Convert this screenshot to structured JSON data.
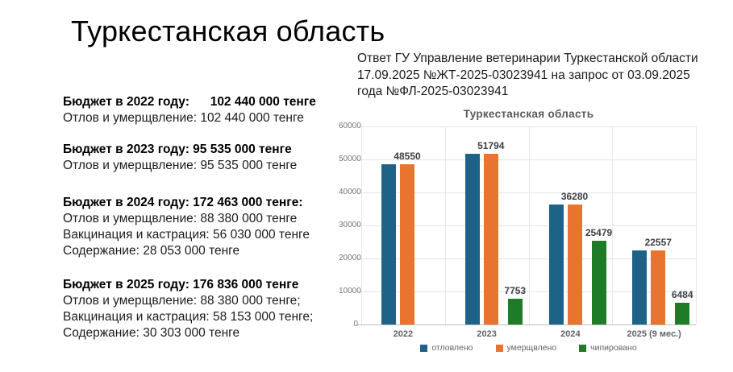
{
  "slide": {
    "title": "Туркестанская область"
  },
  "budget_blocks": [
    {
      "header": "Бюджет в 2022 году:      102 440 000 тенге",
      "lines": [
        "Отлов и умерщвление: 102 440 000 тенге"
      ],
      "gap": "gap-sm"
    },
    {
      "header": "Бюджет в 2023 году: 95 535 000 тенге",
      "lines": [
        "Отлов и умерщвление: 95 535 000 тенге"
      ],
      "gap": "gap-lg"
    },
    {
      "header": "Бюджет в 2024 году: 172 463 000 тенге:",
      "lines": [
        "Отлов и умерщвление: 88 380 000 тенге",
        "Вакцинация и кастрация: 56 030 000 тенге",
        "Содержание: 28 053 000 тенге"
      ],
      "gap": "gap-md"
    },
    {
      "header": "Бюджет в 2025 году: 176 836 000 тенге",
      "lines": [
        "Отлов и умерщвление: 88 380 000 тенге;",
        "Вакцинация и кастрация: 58 153 000 тенге;",
        "Содержание: 30 303 000 тенге"
      ],
      "gap": "gap-sm"
    }
  ],
  "response_note": "Ответ ГУ Управление ветеринарии Туркестанской области 17.09.2025 №ЖТ-2025-03023941 на запрос от 03.09.2025 года №ФЛ-2025-03023941",
  "chart_data": {
    "type": "bar",
    "title": "Туркестанская область",
    "categories": [
      "2022",
      "2023",
      "2024",
      "2025 (9 мес.)"
    ],
    "series": [
      {
        "name": "отловлено",
        "color": "#1f6287",
        "values": [
          48550,
          51794,
          36280,
          22557
        ],
        "show_labels": false
      },
      {
        "name": "умерщвлено",
        "color": "#e8742f",
        "values": [
          48550,
          51794,
          36280,
          22557
        ],
        "show_labels": true
      },
      {
        "name": "чипировано",
        "color": "#1e7b28",
        "values": [
          null,
          7753,
          25479,
          6484
        ],
        "show_labels": true
      }
    ],
    "ylim": [
      0,
      60000
    ],
    "yticks": [
      0,
      10000,
      20000,
      30000,
      40000,
      50000,
      60000
    ],
    "grid": true,
    "legend_position": "bottom"
  }
}
